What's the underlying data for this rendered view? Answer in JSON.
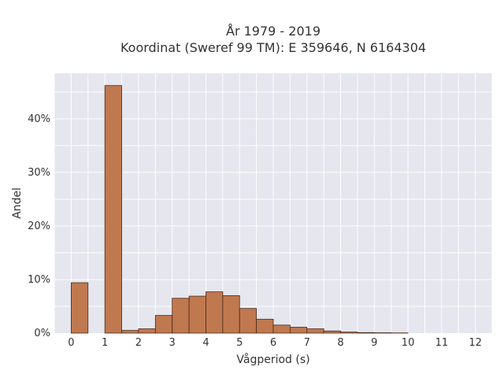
{
  "chart_data": {
    "type": "bar",
    "title": [
      "År 1979 - 2019",
      "Koordinat (Sweref 99 TM): E 359646, N 6164304"
    ],
    "xlabel": "Vågperiod (s)",
    "ylabel": "Andel",
    "xlim": [
      -0.5,
      12.5
    ],
    "ylim": [
      0,
      0.485
    ],
    "x_ticks": [
      0,
      1,
      2,
      3,
      4,
      5,
      6,
      7,
      8,
      9,
      10,
      11,
      12
    ],
    "y_ticks": [
      0,
      0.1,
      0.2,
      0.3,
      0.4
    ],
    "y_tick_labels": [
      "0%",
      "10%",
      "20%",
      "30%",
      "40%"
    ],
    "bin_width": 0.5,
    "bins": [
      {
        "start": 0.0,
        "value": 0.094
      },
      {
        "start": 1.0,
        "value": 0.462
      },
      {
        "start": 1.5,
        "value": 0.005
      },
      {
        "start": 2.0,
        "value": 0.008
      },
      {
        "start": 2.5,
        "value": 0.033
      },
      {
        "start": 3.0,
        "value": 0.065
      },
      {
        "start": 3.5,
        "value": 0.069
      },
      {
        "start": 4.0,
        "value": 0.077
      },
      {
        "start": 4.5,
        "value": 0.07
      },
      {
        "start": 5.0,
        "value": 0.046
      },
      {
        "start": 5.5,
        "value": 0.026
      },
      {
        "start": 6.0,
        "value": 0.015
      },
      {
        "start": 6.5,
        "value": 0.011
      },
      {
        "start": 7.0,
        "value": 0.008
      },
      {
        "start": 7.5,
        "value": 0.004
      },
      {
        "start": 8.0,
        "value": 0.002
      },
      {
        "start": 8.5,
        "value": 0.001
      },
      {
        "start": 9.0,
        "value": 0.0007
      },
      {
        "start": 9.5,
        "value": 0.0004
      }
    ],
    "grid": true,
    "colors": {
      "bar_fill": "#c0784f",
      "bar_stroke": "#4a2a1a",
      "plot_bg": "#e5e6ee",
      "grid": "#ffffff"
    }
  }
}
